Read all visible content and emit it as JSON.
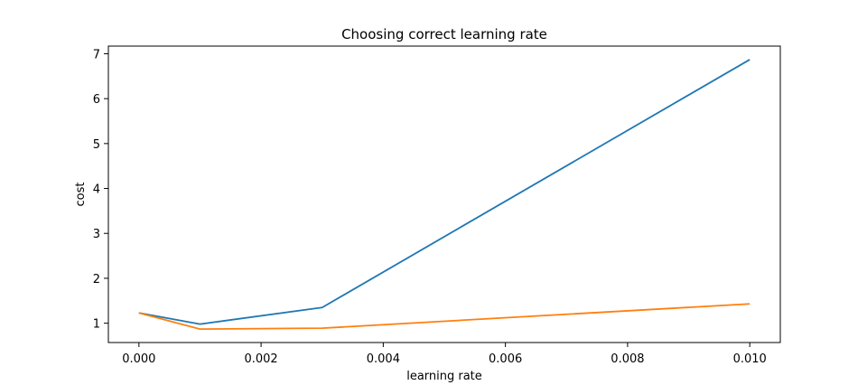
{
  "chart_data": {
    "type": "line",
    "title": "Choosing correct learning rate",
    "xlabel": "learning rate",
    "ylabel": "cost",
    "xlim": [
      -0.0005,
      0.0105
    ],
    "ylim": [
      0.57,
      7.17
    ],
    "xticks": [
      0.0,
      0.002,
      0.004,
      0.006,
      0.008,
      0.01
    ],
    "xtick_labels": [
      "0.000",
      "0.002",
      "0.004",
      "0.006",
      "0.008",
      "0.010"
    ],
    "yticks": [
      1,
      2,
      3,
      4,
      5,
      6,
      7
    ],
    "ytick_labels": [
      "1",
      "2",
      "3",
      "4",
      "5",
      "6",
      "7"
    ],
    "grid": false,
    "series": [
      {
        "color": "#1f77b4",
        "x": [
          0.0,
          0.001,
          0.003,
          0.01
        ],
        "y": [
          1.23,
          0.98,
          1.35,
          6.87
        ]
      },
      {
        "color": "#ff7f0e",
        "x": [
          0.0,
          0.001,
          0.003,
          0.01
        ],
        "y": [
          1.23,
          0.87,
          0.89,
          1.43
        ]
      }
    ]
  }
}
